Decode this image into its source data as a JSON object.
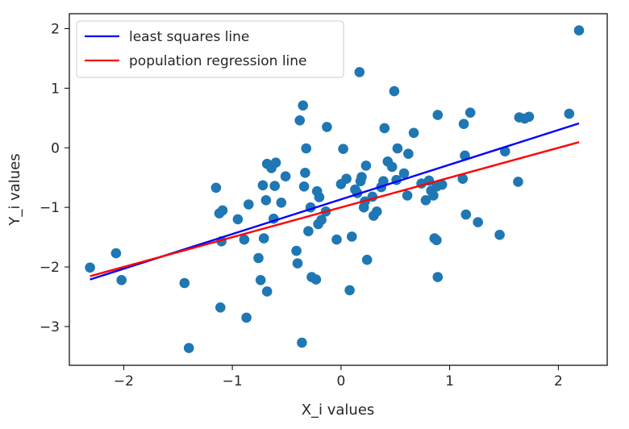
{
  "chart_data": {
    "type": "scatter",
    "title": "",
    "xlabel": "X_i values",
    "ylabel": "Y_i values",
    "xlim": [
      -2.5,
      2.45
    ],
    "ylim": [
      -3.65,
      2.25
    ],
    "xticks": [
      -2,
      -1,
      0,
      1,
      2
    ],
    "xtick_labels": [
      "−2",
      "−1",
      "0",
      "1",
      "2"
    ],
    "yticks": [
      -3,
      -2,
      -1,
      0,
      1,
      2
    ],
    "ytick_labels": [
      "−3",
      "−2",
      "−1",
      "0",
      "1",
      "2"
    ],
    "grid": false,
    "legend_position": "top-left",
    "colors": {
      "points": "#1f77b4",
      "least_squares": "#0000ff",
      "population": "#ff0000",
      "axes": "#000000"
    },
    "points": [
      {
        "x": -2.31,
        "y": -2.01
      },
      {
        "x": -2.07,
        "y": -1.77
      },
      {
        "x": -2.02,
        "y": -2.22
      },
      {
        "x": -1.44,
        "y": -2.27
      },
      {
        "x": -1.4,
        "y": -3.36
      },
      {
        "x": -1.15,
        "y": -0.67
      },
      {
        "x": -1.12,
        "y": -1.1
      },
      {
        "x": -1.09,
        "y": -1.05
      },
      {
        "x": -1.1,
        "y": -1.57
      },
      {
        "x": -1.11,
        "y": -2.68
      },
      {
        "x": -0.95,
        "y": -1.2
      },
      {
        "x": -0.89,
        "y": -1.54
      },
      {
        "x": -0.87,
        "y": -2.85
      },
      {
        "x": -0.85,
        "y": -0.95
      },
      {
        "x": -0.76,
        "y": -1.85
      },
      {
        "x": -0.74,
        "y": -2.22
      },
      {
        "x": -0.71,
        "y": -1.52
      },
      {
        "x": -0.72,
        "y": -0.63
      },
      {
        "x": -0.68,
        "y": -0.27
      },
      {
        "x": -0.69,
        "y": -0.88
      },
      {
        "x": -0.68,
        "y": -2.41
      },
      {
        "x": -0.64,
        "y": -0.34
      },
      {
        "x": -0.62,
        "y": -1.19
      },
      {
        "x": -0.61,
        "y": -0.64
      },
      {
        "x": -0.6,
        "y": -0.25
      },
      {
        "x": -0.55,
        "y": -0.92
      },
      {
        "x": -0.51,
        "y": -0.48
      },
      {
        "x": -0.41,
        "y": -1.73
      },
      {
        "x": -0.4,
        "y": -1.94
      },
      {
        "x": -0.38,
        "y": 0.46
      },
      {
        "x": -0.36,
        "y": -3.27
      },
      {
        "x": -0.35,
        "y": 0.71
      },
      {
        "x": -0.34,
        "y": -0.65
      },
      {
        "x": -0.33,
        "y": -0.42
      },
      {
        "x": -0.32,
        "y": -0.01
      },
      {
        "x": -0.3,
        "y": -1.4
      },
      {
        "x": -0.28,
        "y": -1.0
      },
      {
        "x": -0.27,
        "y": -2.17
      },
      {
        "x": -0.23,
        "y": -2.21
      },
      {
        "x": -0.22,
        "y": -0.73
      },
      {
        "x": -0.21,
        "y": -1.28
      },
      {
        "x": -0.2,
        "y": -0.83
      },
      {
        "x": -0.18,
        "y": -1.21
      },
      {
        "x": -0.14,
        "y": -1.07
      },
      {
        "x": -0.13,
        "y": 0.35
      },
      {
        "x": -0.04,
        "y": -1.54
      },
      {
        "x": 0.0,
        "y": -0.61
      },
      {
        "x": 0.02,
        "y": -0.02
      },
      {
        "x": 0.05,
        "y": -0.52
      },
      {
        "x": 0.08,
        "y": -2.39
      },
      {
        "x": 0.1,
        "y": -1.49
      },
      {
        "x": 0.13,
        "y": -0.7
      },
      {
        "x": 0.15,
        "y": -0.76
      },
      {
        "x": 0.17,
        "y": 1.27
      },
      {
        "x": 0.18,
        "y": -0.56
      },
      {
        "x": 0.19,
        "y": -0.49
      },
      {
        "x": 0.21,
        "y": -1.0
      },
      {
        "x": 0.22,
        "y": -0.9
      },
      {
        "x": 0.23,
        "y": -0.3
      },
      {
        "x": 0.24,
        "y": -1.88
      },
      {
        "x": 0.29,
        "y": -0.82
      },
      {
        "x": 0.3,
        "y": -1.14
      },
      {
        "x": 0.33,
        "y": -1.07
      },
      {
        "x": 0.37,
        "y": -0.66
      },
      {
        "x": 0.39,
        "y": -0.56
      },
      {
        "x": 0.4,
        "y": 0.33
      },
      {
        "x": 0.43,
        "y": -0.23
      },
      {
        "x": 0.47,
        "y": -0.32
      },
      {
        "x": 0.49,
        "y": 0.95
      },
      {
        "x": 0.51,
        "y": -0.54
      },
      {
        "x": 0.52,
        "y": -0.01
      },
      {
        "x": 0.58,
        "y": -0.43
      },
      {
        "x": 0.61,
        "y": -0.8
      },
      {
        "x": 0.62,
        "y": -0.1
      },
      {
        "x": 0.67,
        "y": 0.25
      },
      {
        "x": 0.74,
        "y": -0.6
      },
      {
        "x": 0.78,
        "y": -0.88
      },
      {
        "x": 0.81,
        "y": -0.55
      },
      {
        "x": 0.83,
        "y": -0.72
      },
      {
        "x": 0.85,
        "y": -0.8
      },
      {
        "x": 0.86,
        "y": -1.52
      },
      {
        "x": 0.88,
        "y": -0.65
      },
      {
        "x": 0.88,
        "y": -1.55
      },
      {
        "x": 0.89,
        "y": 0.55
      },
      {
        "x": 0.89,
        "y": -2.17
      },
      {
        "x": 0.93,
        "y": -0.62
      },
      {
        "x": 1.12,
        "y": -0.52
      },
      {
        "x": 1.13,
        "y": 0.4
      },
      {
        "x": 1.14,
        "y": -0.13
      },
      {
        "x": 1.15,
        "y": -1.12
      },
      {
        "x": 1.19,
        "y": 0.59
      },
      {
        "x": 1.26,
        "y": -1.25
      },
      {
        "x": 1.46,
        "y": -1.46
      },
      {
        "x": 1.51,
        "y": -0.06
      },
      {
        "x": 1.63,
        "y": -0.57
      },
      {
        "x": 1.64,
        "y": 0.51
      },
      {
        "x": 1.69,
        "y": 0.49
      },
      {
        "x": 1.73,
        "y": 0.52
      },
      {
        "x": 2.1,
        "y": 0.57
      },
      {
        "x": 2.19,
        "y": 1.97
      }
    ],
    "series": [
      {
        "name": "least squares line",
        "type": "line",
        "color": "#0000ff",
        "x": [
          -2.31,
          2.19
        ],
        "y": [
          -2.21,
          0.41
        ]
      },
      {
        "name": "population regression line",
        "type": "line",
        "color": "#ff0000",
        "x": [
          -2.31,
          2.19
        ],
        "y": [
          -2.155,
          0.095
        ]
      }
    ],
    "legend": [
      {
        "label": "least squares line",
        "color": "#0000ff"
      },
      {
        "label": "population regression line",
        "color": "#ff0000"
      }
    ]
  }
}
